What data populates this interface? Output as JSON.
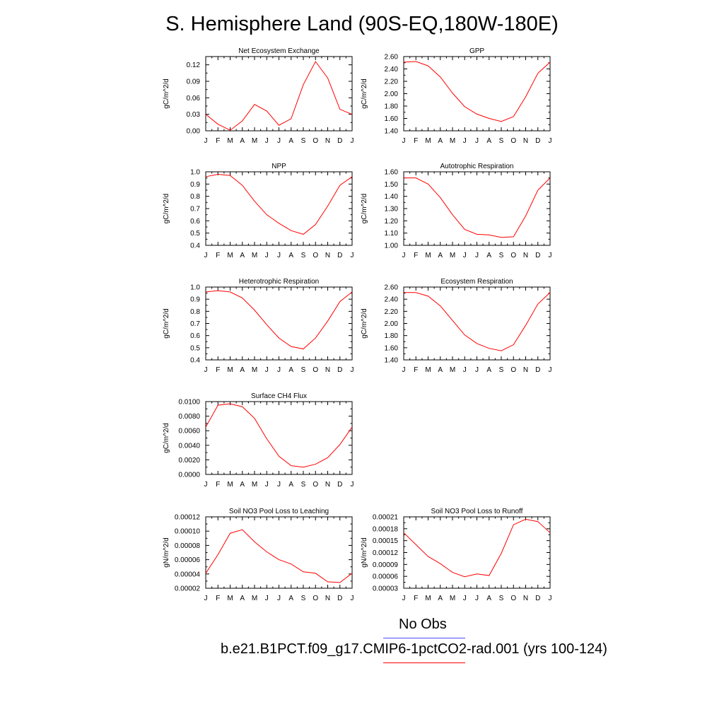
{
  "title": "S. Hemisphere Land (90S-EQ,180W-180E)",
  "legend": {
    "obs_label": "No Obs",
    "obs_color": "#4d4dff",
    "model_label": "b.e21.B1PCT.f09_g17.CMIP6-1pctCO2-rad.001 (yrs 100-124)",
    "model_color": "#ff0000"
  },
  "chart_data": [
    {
      "type": "line",
      "title": "Net Ecosystem Exchange",
      "ylabel": "gC/m^2/d",
      "categories": [
        "J",
        "F",
        "M",
        "A",
        "M",
        "J",
        "J",
        "A",
        "S",
        "O",
        "N",
        "D",
        "J"
      ],
      "ylim": [
        0.0,
        0.135
      ],
      "yticks": [
        0.0,
        0.03,
        0.06,
        0.09,
        0.12
      ],
      "ytick_labels": [
        "0.00",
        "0.03",
        "0.06",
        "0.09",
        "0.12"
      ],
      "series": [
        {
          "values": [
            0.03,
            0.012,
            0.001,
            0.018,
            0.048,
            0.036,
            0.01,
            0.022,
            0.084,
            0.126,
            0.096,
            0.039,
            0.03
          ]
        }
      ]
    },
    {
      "type": "line",
      "title": "GPP",
      "ylabel": "gC/m^2/d",
      "categories": [
        "J",
        "F",
        "M",
        "A",
        "M",
        "J",
        "J",
        "A",
        "S",
        "O",
        "N",
        "D",
        "J"
      ],
      "ylim": [
        1.4,
        2.6
      ],
      "yticks": [
        1.4,
        1.6,
        1.8,
        2.0,
        2.2,
        2.4,
        2.6
      ],
      "ytick_labels": [
        "1.40",
        "1.60",
        "1.80",
        "2.00",
        "2.20",
        "2.40",
        "2.60"
      ],
      "series": [
        {
          "values": [
            2.51,
            2.52,
            2.45,
            2.27,
            2.01,
            1.79,
            1.67,
            1.6,
            1.55,
            1.63,
            1.95,
            2.33,
            2.51
          ]
        }
      ]
    },
    {
      "type": "line",
      "title": "NPP",
      "ylabel": "gC/m^2/d",
      "categories": [
        "J",
        "F",
        "M",
        "A",
        "M",
        "J",
        "J",
        "A",
        "S",
        "O",
        "N",
        "D",
        "J"
      ],
      "ylim": [
        0.4,
        1.0
      ],
      "yticks": [
        0.4,
        0.5,
        0.6,
        0.7,
        0.8,
        0.9,
        1.0
      ],
      "ytick_labels": [
        "0.4",
        "0.5",
        "0.6",
        "0.7",
        "0.8",
        "0.9",
        "1.0"
      ],
      "series": [
        {
          "values": [
            0.96,
            0.98,
            0.97,
            0.89,
            0.76,
            0.65,
            0.58,
            0.52,
            0.49,
            0.57,
            0.72,
            0.89,
            0.96
          ]
        }
      ]
    },
    {
      "type": "line",
      "title": "Autotrophic Respiration",
      "ylabel": "gC/m^2/d",
      "categories": [
        "J",
        "F",
        "M",
        "A",
        "M",
        "J",
        "J",
        "A",
        "S",
        "O",
        "N",
        "D",
        "J"
      ],
      "ylim": [
        1.0,
        1.6
      ],
      "yticks": [
        1.0,
        1.1,
        1.2,
        1.3,
        1.4,
        1.5,
        1.6
      ],
      "ytick_labels": [
        "1.00",
        "1.10",
        "1.20",
        "1.30",
        "1.40",
        "1.50",
        "1.60"
      ],
      "series": [
        {
          "values": [
            1.55,
            1.55,
            1.5,
            1.39,
            1.25,
            1.13,
            1.09,
            1.085,
            1.065,
            1.07,
            1.24,
            1.45,
            1.55
          ]
        }
      ]
    },
    {
      "type": "line",
      "title": "Heterotrophic Respiration",
      "ylabel": "gC/m^2/d",
      "categories": [
        "J",
        "F",
        "M",
        "A",
        "M",
        "J",
        "J",
        "A",
        "S",
        "O",
        "N",
        "D",
        "J"
      ],
      "ylim": [
        0.4,
        1.0
      ],
      "yticks": [
        0.4,
        0.5,
        0.6,
        0.7,
        0.8,
        0.9,
        1.0
      ],
      "ytick_labels": [
        "0.4",
        "0.5",
        "0.6",
        "0.7",
        "0.8",
        "0.9",
        "1.0"
      ],
      "series": [
        {
          "values": [
            0.96,
            0.97,
            0.96,
            0.91,
            0.81,
            0.69,
            0.58,
            0.51,
            0.49,
            0.58,
            0.72,
            0.88,
            0.96
          ]
        }
      ]
    },
    {
      "type": "line",
      "title": "Ecosystem Respiration",
      "ylabel": "gC/m^2/d",
      "categories": [
        "J",
        "F",
        "M",
        "A",
        "M",
        "J",
        "J",
        "A",
        "S",
        "O",
        "N",
        "D",
        "J"
      ],
      "ylim": [
        1.4,
        2.6
      ],
      "yticks": [
        1.4,
        1.6,
        1.8,
        2.0,
        2.2,
        2.4,
        2.6
      ],
      "ytick_labels": [
        "1.40",
        "1.60",
        "1.80",
        "2.00",
        "2.20",
        "2.40",
        "2.60"
      ],
      "series": [
        {
          "values": [
            2.51,
            2.51,
            2.45,
            2.29,
            2.05,
            1.81,
            1.67,
            1.59,
            1.55,
            1.65,
            1.97,
            2.32,
            2.51
          ]
        }
      ]
    },
    {
      "type": "line",
      "title": "Surface CH4 Flux",
      "ylabel": "gC/m^2/d",
      "categories": [
        "J",
        "F",
        "M",
        "A",
        "M",
        "J",
        "J",
        "A",
        "S",
        "O",
        "N",
        "D",
        "J"
      ],
      "ylim": [
        0.0,
        0.01
      ],
      "yticks": [
        0.0,
        0.002,
        0.004,
        0.006,
        0.008,
        0.01
      ],
      "ytick_labels": [
        "0.0000",
        "0.0020",
        "0.0040",
        "0.0060",
        "0.0080",
        "0.0100"
      ],
      "series": [
        {
          "values": [
            0.0065,
            0.0095,
            0.0097,
            0.0093,
            0.0077,
            0.0049,
            0.0025,
            0.0012,
            0.001,
            0.0014,
            0.0023,
            0.0041,
            0.0065
          ]
        }
      ]
    },
    {
      "type": "line",
      "title": "Soil NO3 Pool Loss to Leaching",
      "ylabel": "gN/m^2/d",
      "categories": [
        "J",
        "F",
        "M",
        "A",
        "M",
        "J",
        "J",
        "A",
        "S",
        "O",
        "N",
        "D",
        "J"
      ],
      "ylim": [
        2e-05,
        0.00012
      ],
      "yticks": [
        2e-05,
        4e-05,
        6e-05,
        8e-05,
        0.0001,
        0.00012
      ],
      "ytick_labels": [
        "0.00002",
        "0.00004",
        "0.00006",
        "0.00008",
        "0.00010",
        "0.00012"
      ],
      "series": [
        {
          "values": [
            4.1e-05,
            6.7e-05,
            9.7e-05,
            0.000102,
            8.5e-05,
            7.1e-05,
            6e-05,
            5.4e-05,
            4.3e-05,
            4.1e-05,
            2.9e-05,
            2.8e-05,
            4.1e-05
          ]
        }
      ]
    },
    {
      "type": "line",
      "title": "Soil NO3 Pool Loss to Runoff",
      "ylabel": "gN/m^2/d",
      "categories": [
        "J",
        "F",
        "M",
        "A",
        "M",
        "J",
        "J",
        "A",
        "S",
        "O",
        "N",
        "D",
        "J"
      ],
      "ylim": [
        3e-05,
        0.00021
      ],
      "yticks": [
        3e-05,
        6e-05,
        9e-05,
        0.00012,
        0.00015,
        0.00018,
        0.00021
      ],
      "ytick_labels": [
        "0.00003",
        "0.00006",
        "0.00009",
        "0.00012",
        "0.00015",
        "0.00018",
        "0.00021"
      ],
      "series": [
        {
          "values": [
            0.00017,
            0.00014,
            0.00011,
            9.2e-05,
            7e-05,
            5.9e-05,
            6.6e-05,
            6.2e-05,
            0.000118,
            0.00019,
            0.000204,
            0.000198,
            0.00017
          ]
        }
      ]
    }
  ]
}
